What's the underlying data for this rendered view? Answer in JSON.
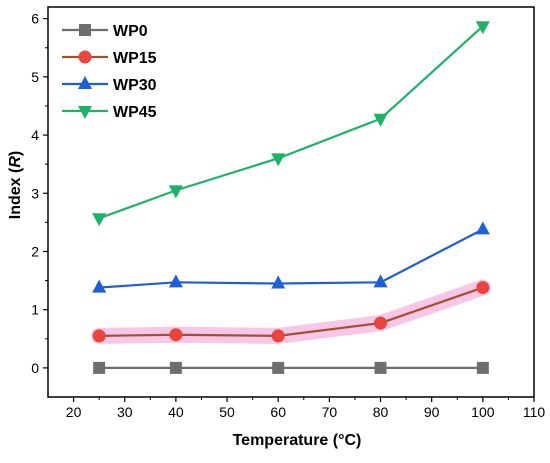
{
  "chart_data": {
    "type": "line",
    "xlabel": "Temperature (°C)",
    "ylabel_prefix": "Index (",
    "ylabel_var": "R",
    "ylabel_suffix": ")",
    "xlim": [
      15,
      110
    ],
    "ylim": [
      -0.5,
      6.2
    ],
    "xticks": [
      20,
      30,
      40,
      50,
      60,
      70,
      80,
      90,
      100,
      110
    ],
    "yticks": [
      0,
      1,
      2,
      3,
      4,
      5,
      6
    ],
    "legend_position": "top-left",
    "series": [
      {
        "name": "WP0",
        "color": "#6e6e6e",
        "marker": "square",
        "x": [
          25,
          40,
          60,
          80,
          100
        ],
        "y": [
          0,
          0,
          0,
          0,
          0
        ]
      },
      {
        "name": "WP15",
        "color": "#e8453c",
        "marker": "circle",
        "line_color": "#a0522d",
        "halo": "#f7c6e8",
        "x": [
          25,
          40,
          60,
          80,
          100
        ],
        "y": [
          0.55,
          0.57,
          0.55,
          0.77,
          1.38
        ]
      },
      {
        "name": "WP30",
        "color": "#1f5fd6",
        "marker": "triangle-up",
        "x": [
          25,
          40,
          60,
          80,
          100
        ],
        "y": [
          1.38,
          1.47,
          1.45,
          1.47,
          2.38
        ]
      },
      {
        "name": "WP45",
        "color": "#1db366",
        "marker": "triangle-down",
        "x": [
          25,
          40,
          60,
          80,
          100
        ],
        "y": [
          2.57,
          3.05,
          3.6,
          4.28,
          5.87
        ]
      }
    ]
  }
}
